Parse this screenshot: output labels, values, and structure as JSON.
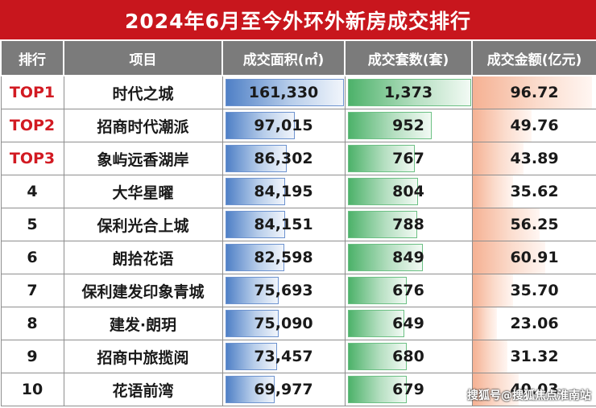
{
  "title": "2024年6月至今外环外新房成交排行",
  "headers": {
    "rank": "排行",
    "project": "项目",
    "area": "成交面积(㎡)",
    "units": "成交套数(套)",
    "amount": "成交金额(亿元)"
  },
  "rows": [
    {
      "rank": "TOP1",
      "project": "时代之城",
      "area": "161,330",
      "units": "1,373",
      "amount": "96.72",
      "area_value": 161330,
      "units_value": 1373,
      "amount_value": 96.72
    },
    {
      "rank": "TOP2",
      "project": "招商时代潮派",
      "area": "97,015",
      "units": "952",
      "amount": "49.76",
      "area_value": 97015,
      "units_value": 952,
      "amount_value": 49.76
    },
    {
      "rank": "TOP3",
      "project": "象屿远香湖岸",
      "area": "86,302",
      "units": "767",
      "amount": "43.89",
      "area_value": 86302,
      "units_value": 767,
      "amount_value": 43.89
    },
    {
      "rank": "4",
      "project": "大华星曜",
      "area": "84,195",
      "units": "804",
      "amount": "35.62",
      "area_value": 84195,
      "units_value": 804,
      "amount_value": 35.62
    },
    {
      "rank": "5",
      "project": "保利光合上城",
      "area": "84,151",
      "units": "788",
      "amount": "56.25",
      "area_value": 84151,
      "units_value": 788,
      "amount_value": 56.25
    },
    {
      "rank": "6",
      "project": "朗拾花语",
      "area": "82,598",
      "units": "849",
      "amount": "60.91",
      "area_value": 82598,
      "units_value": 849,
      "amount_value": 60.91
    },
    {
      "rank": "7",
      "project": "保利建发印象青城",
      "area": "75,693",
      "units": "676",
      "amount": "35.70",
      "area_value": 75693,
      "units_value": 676,
      "amount_value": 35.7
    },
    {
      "rank": "8",
      "project": "建发·朗玥",
      "area": "75,090",
      "units": "649",
      "amount": "23.06",
      "area_value": 75090,
      "units_value": 649,
      "amount_value": 23.06
    },
    {
      "rank": "9",
      "project": "招商中旅揽阅",
      "area": "73,457",
      "units": "680",
      "amount": "31.32",
      "area_value": 73457,
      "units_value": 680,
      "amount_value": 31.32
    },
    {
      "rank": "10",
      "project": "花语前湾",
      "area": "69,977",
      "units": "679",
      "amount": "40.03",
      "area_value": 69977,
      "units_value": 679,
      "amount_value": 40.03
    }
  ],
  "watermark": "搜狐号@搜狐焦点淮南站",
  "colors": {
    "title_bg": "#c8161d",
    "header_bg": "#7b7b7b",
    "top_rank": "#d21a22",
    "area_bar": "#4f80c6",
    "units_bar": "#4db26a",
    "amount_bar": "#f5b193"
  }
}
